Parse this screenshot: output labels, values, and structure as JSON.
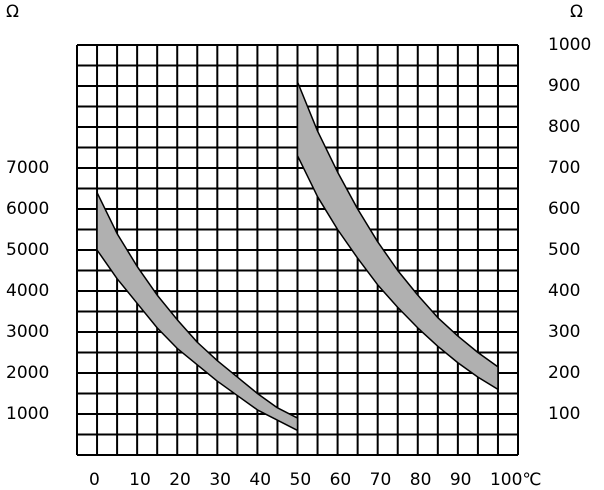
{
  "chart_data": {
    "type": "band",
    "y_label": "Ω",
    "y2_label": "Ω",
    "xlim": [
      -5,
      105
    ],
    "xticks": [
      0,
      10,
      20,
      30,
      40,
      50,
      60,
      70,
      80,
      90,
      {
        "value": 100,
        "label": "100℃"
      }
    ],
    "ylim": [
      0,
      10000
    ],
    "yticks": [
      1000,
      2000,
      3000,
      4000,
      5000,
      6000,
      7000
    ],
    "y2lim": [
      0,
      1000
    ],
    "y2ticks": [
      100,
      200,
      300,
      400,
      500,
      600,
      700,
      800,
      900,
      1000
    ],
    "grid": true,
    "x_minor_step": 5,
    "y_minor_step": 500,
    "color": "#b0b0b0",
    "bands": [
      {
        "axis": "y",
        "x": [
          0,
          5,
          10,
          15,
          20,
          25,
          30,
          35,
          40,
          45,
          50
        ],
        "upper": [
          6400,
          5400,
          4600,
          3900,
          3300,
          2750,
          2300,
          1900,
          1500,
          1150,
          900
        ],
        "lower": [
          5000,
          4300,
          3700,
          3100,
          2600,
          2200,
          1800,
          1450,
          1100,
          850,
          600
        ]
      },
      {
        "axis": "y2",
        "x": [
          50,
          55,
          60,
          65,
          70,
          75,
          80,
          85,
          90,
          95,
          100
        ],
        "upper": [
          910,
          790,
          690,
          600,
          520,
          450,
          390,
          335,
          290,
          250,
          215
        ],
        "lower": [
          730,
          630,
          550,
          480,
          415,
          360,
          310,
          265,
          225,
          190,
          160
        ]
      }
    ]
  }
}
